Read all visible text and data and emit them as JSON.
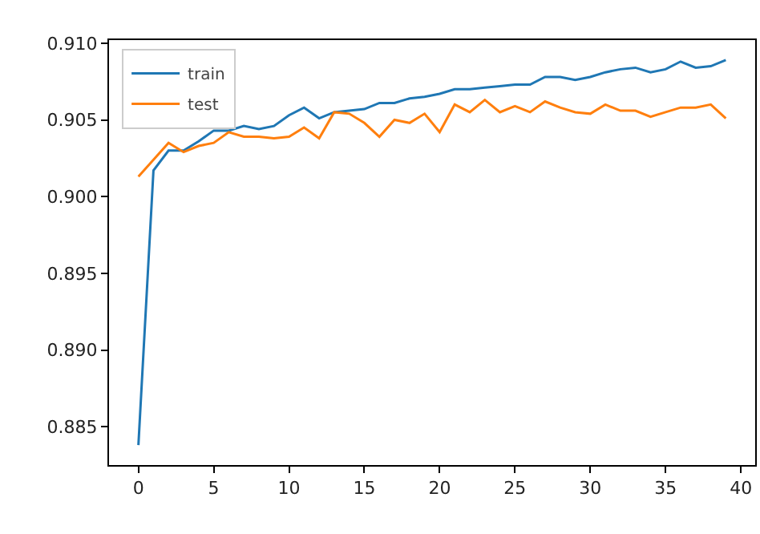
{
  "chart_data": {
    "type": "line",
    "x": [
      0,
      1,
      2,
      3,
      4,
      5,
      6,
      7,
      8,
      9,
      10,
      11,
      12,
      13,
      14,
      15,
      16,
      17,
      18,
      19,
      20,
      21,
      22,
      23,
      24,
      25,
      26,
      27,
      28,
      29,
      30,
      31,
      32,
      33,
      34,
      35,
      36,
      37,
      38,
      39
    ],
    "series": [
      {
        "name": "train",
        "color": "#1f77b4",
        "values": [
          0.8838,
          0.9017,
          0.903,
          0.903,
          0.9036,
          0.9043,
          0.9043,
          0.9046,
          0.9044,
          0.9046,
          0.9053,
          0.9058,
          0.9051,
          0.9055,
          0.9056,
          0.9057,
          0.9061,
          0.9061,
          0.9064,
          0.9065,
          0.9067,
          0.907,
          0.907,
          0.9071,
          0.9072,
          0.9073,
          0.9073,
          0.9078,
          0.9078,
          0.9076,
          0.9078,
          0.9081,
          0.9083,
          0.9084,
          0.9081,
          0.9083,
          0.9088,
          0.9084,
          0.9085,
          0.9089
        ]
      },
      {
        "name": "test",
        "color": "#ff7f0e",
        "values": [
          0.9013,
          0.9024,
          0.9035,
          0.9029,
          0.9033,
          0.9035,
          0.9042,
          0.9039,
          0.9039,
          0.9038,
          0.9039,
          0.9045,
          0.9038,
          0.9055,
          0.9054,
          0.9048,
          0.9039,
          0.905,
          0.9048,
          0.9054,
          0.9042,
          0.906,
          0.9055,
          0.9063,
          0.9055,
          0.9059,
          0.9055,
          0.9062,
          0.9058,
          0.9055,
          0.9054,
          0.906,
          0.9056,
          0.9056,
          0.9052,
          0.9055,
          0.9058,
          0.9058,
          0.906,
          0.9051
        ]
      }
    ],
    "xlim": [
      -1.95,
      40.95
    ],
    "xticks": [
      0,
      5,
      10,
      15,
      20,
      25,
      30,
      35,
      40
    ],
    "ylim": [
      0.8825,
      0.9102
    ],
    "yticks": [
      {
        "value": 0.885,
        "label": "0.885"
      },
      {
        "value": 0.89,
        "label": "0.890"
      },
      {
        "value": 0.895,
        "label": "0.895"
      },
      {
        "value": 0.9,
        "label": "0.900"
      },
      {
        "value": 0.905,
        "label": "0.905"
      },
      {
        "value": 0.91,
        "label": "0.910"
      }
    ],
    "grid": false,
    "legend": "top left",
    "line_style": "solid"
  }
}
